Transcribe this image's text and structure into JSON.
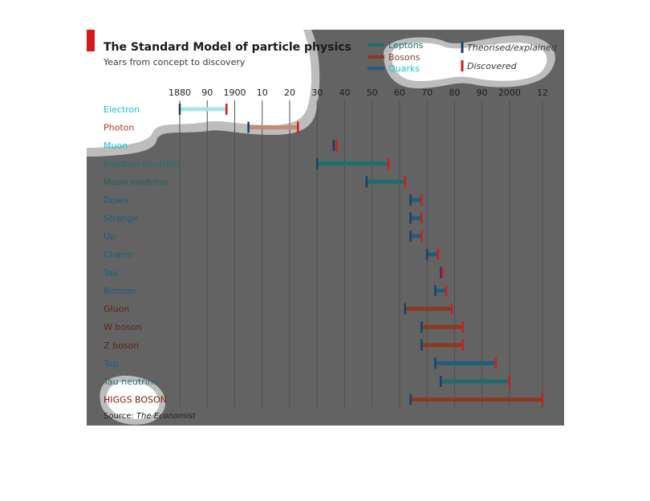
{
  "chart_data": {
    "type": "range-bar",
    "title": "The Standard Model of particle physics",
    "subtitle": "Years from concept to discovery",
    "x_tick_labels": [
      "1880",
      "90",
      "1900",
      "10",
      "20",
      "30",
      "40",
      "50",
      "60",
      "70",
      "80",
      "90",
      "2000",
      "12"
    ],
    "x_tick_values": [
      1880,
      1890,
      1900,
      1910,
      1920,
      1930,
      1940,
      1950,
      1960,
      1970,
      1980,
      1990,
      2000,
      2012
    ],
    "xlim": [
      1880,
      2012
    ],
    "legend": {
      "types": [
        {
          "name": "Leptons",
          "color": "#1e6e6e"
        },
        {
          "name": "Bosons",
          "color": "#8b3a22"
        },
        {
          "name": "Quarks",
          "color": "#1f5d7a"
        }
      ],
      "markers": [
        {
          "name": "Theorised/explained",
          "color": "#1a3f66"
        },
        {
          "name": "Discovered",
          "color": "#d7191c"
        }
      ]
    },
    "rows": [
      {
        "name": "Electron",
        "type": "Leptons",
        "theorised": 1880,
        "discovered": 1897,
        "label_color": "#15c8cf"
      },
      {
        "name": "Photon",
        "type": "Bosons",
        "theorised": 1905,
        "discovered": 1923,
        "label_color": "#b23a14"
      },
      {
        "name": "Muon",
        "type": "Leptons",
        "theorised": 1936,
        "discovered": 1937,
        "label_color": "#15c8cf"
      },
      {
        "name": "Electron neutrino",
        "type": "Leptons",
        "theorised": 1930,
        "discovered": 1956,
        "label_color": "#1e6e6e"
      },
      {
        "name": "Muon neutrino",
        "type": "Leptons",
        "theorised": 1948,
        "discovered": 1962,
        "label_color": "#1e5c5c"
      },
      {
        "name": "Down",
        "type": "Quarks",
        "theorised": 1964,
        "discovered": 1968,
        "label_color": "#1f5d7a"
      },
      {
        "name": "Strange",
        "type": "Quarks",
        "theorised": 1964,
        "discovered": 1968,
        "label_color": "#1f5d7a"
      },
      {
        "name": "Up",
        "type": "Quarks",
        "theorised": 1964,
        "discovered": 1968,
        "label_color": "#1f5d7a"
      },
      {
        "name": "Charm",
        "type": "Quarks",
        "theorised": 1970,
        "discovered": 1974,
        "label_color": "#1f5d7a"
      },
      {
        "name": "Tau",
        "type": "Leptons",
        "theorised": 1975,
        "discovered": 1975,
        "label_color": "#1f5d7a"
      },
      {
        "name": "Bottom",
        "type": "Quarks",
        "theorised": 1973,
        "discovered": 1977,
        "label_color": "#1f5d7a"
      },
      {
        "name": "Gluon",
        "type": "Bosons",
        "theorised": 1962,
        "discovered": 1979,
        "label_color": "#5a2414"
      },
      {
        "name": "W boson",
        "type": "Bosons",
        "theorised": 1968,
        "discovered": 1983,
        "label_color": "#5a2414"
      },
      {
        "name": "Z boson",
        "type": "Bosons",
        "theorised": 1968,
        "discovered": 1983,
        "label_color": "#5a2414"
      },
      {
        "name": "Top",
        "type": "Quarks",
        "theorised": 1973,
        "discovered": 1995,
        "label_color": "#1f5d7a"
      },
      {
        "name": "Tau neutrino",
        "type": "Leptons",
        "theorised": 1975,
        "discovered": 2000,
        "label_color": "#1e6e6e"
      },
      {
        "name": "HIGGS BOSON",
        "type": "Bosons",
        "theorised": 1964,
        "discovered": 2012,
        "label_color": "#7a1a0a"
      }
    ],
    "source_prefix": "Source: ",
    "source_name": "The Economist",
    "grid": true
  },
  "colors": {
    "panel_bg": "#636363",
    "highlight_bg": "#ffffff",
    "highlight_ring": "#bdbdbd",
    "gridline": "#4f4f4f",
    "accent": "#d7191c",
    "electron_bar": "#a8e6ee",
    "photon_bar": "#c48a72"
  }
}
